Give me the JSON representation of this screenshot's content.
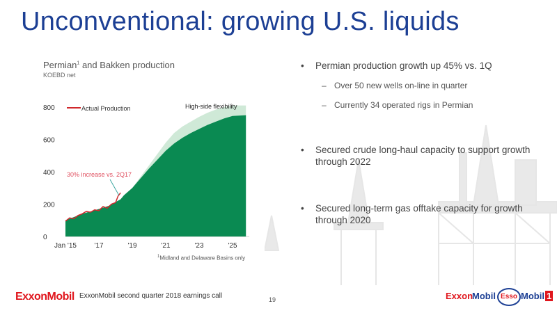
{
  "slide": {
    "title": "Unconventional: growing U.S. liquids",
    "page_number": "19"
  },
  "chart": {
    "title_text": "Permian",
    "title_sup": "1",
    "title_rest": " and Bakken production",
    "subtitle": "KOEBD net",
    "legend_actual": "Actual Production",
    "label_high_side": "High-side flexibility",
    "annotation": "30% increase vs. 2Q17",
    "footnote_sup": "1",
    "footnote": "Midland and Delaware Basins only"
  },
  "chart_data": {
    "type": "area",
    "ylim": [
      0,
      800
    ],
    "xlim": [
      2015,
      2026
    ],
    "yticks": [
      "0",
      "200",
      "400",
      "600",
      "800"
    ],
    "ytick_values": [
      0,
      200,
      400,
      600,
      800
    ],
    "xticks": [
      "Jan '15",
      "'17",
      "'19",
      "'21",
      "'23",
      "'25"
    ],
    "xtick_values": [
      2015,
      2017,
      2019,
      2021,
      2023,
      2025
    ],
    "series": [
      {
        "name": "High-side flexibility",
        "x": [
          2015,
          2016,
          2017,
          2017.6,
          2018.3,
          2018.5,
          2019,
          2019.5,
          2020,
          2020.5,
          2021,
          2021.5,
          2022,
          2022.5,
          2023,
          2023.5,
          2024,
          2024.5,
          2025,
          2025.8
        ],
        "values": [
          100,
          140,
          170,
          190,
          230,
          255,
          300,
          370,
          440,
          510,
          580,
          640,
          680,
          710,
          740,
          765,
          785,
          800,
          810,
          810
        ]
      },
      {
        "name": "Base",
        "x": [
          2015,
          2016,
          2017,
          2017.6,
          2018.3,
          2018.5,
          2019,
          2019.5,
          2020,
          2020.5,
          2021,
          2021.5,
          2022,
          2022.5,
          2023,
          2023.5,
          2024,
          2024.5,
          2025,
          2025.8
        ],
        "values": [
          100,
          140,
          170,
          190,
          230,
          255,
          300,
          360,
          420,
          475,
          530,
          575,
          610,
          640,
          665,
          690,
          710,
          730,
          745,
          750
        ]
      },
      {
        "name": "Actual Production",
        "x": [
          2015,
          2015.25,
          2015.5,
          2015.75,
          2016,
          2016.25,
          2016.5,
          2016.75,
          2017,
          2017.25,
          2017.5,
          2017.75,
          2018,
          2018.15,
          2018.3
        ],
        "values": [
          95,
          115,
          110,
          130,
          140,
          155,
          150,
          165,
          160,
          185,
          175,
          200,
          210,
          250,
          270
        ]
      }
    ]
  },
  "bullets": [
    {
      "text": "Permian production growth up 45% vs. 1Q",
      "subs": [
        "Over 50 new wells on-line in quarter",
        "Currently 34 operated rigs in Permian"
      ]
    },
    {
      "text": "Secured crude long-haul capacity to support growth through 2022",
      "subs": []
    },
    {
      "text": "Secured long-term gas offtake capacity for growth through 2020",
      "subs": []
    }
  ],
  "bullet_symbol": "•",
  "sub_symbol": "–",
  "footer": {
    "logo": "ExxonMobil",
    "text": "ExxonMobil second quarter 2018 earnings call"
  },
  "brands": {
    "exxon": "Exxon",
    "mobil": "Mobil",
    "esso": "Esso",
    "mobil1_text": "Mobil",
    "mobil1_num": "1"
  },
  "colors": {
    "title": "#1c3f94",
    "area_base": "#0a8a52",
    "area_high": "#cfe9d7",
    "actual_line": "#d0282c",
    "annotation": "#e05060",
    "arrow": "#3aa6a0",
    "footer_red": "#e0161d"
  }
}
